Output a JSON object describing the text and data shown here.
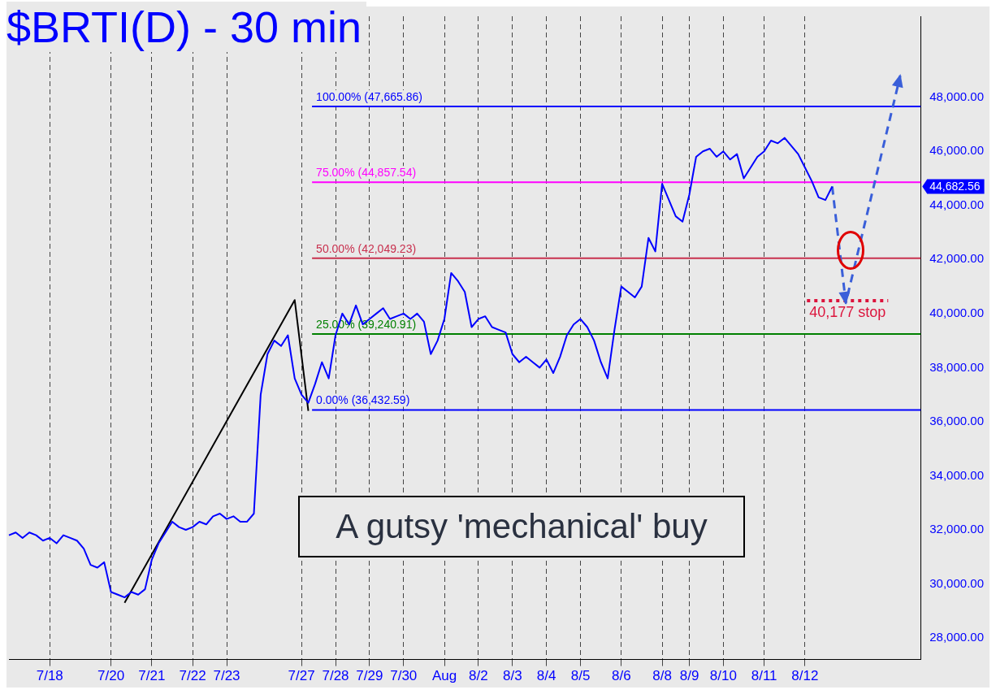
{
  "chart_data": {
    "type": "line",
    "title": "$BRTI(D) - 30 min",
    "categories": [
      null,
      null,
      null,
      null,
      null,
      null,
      "7/18",
      null,
      null,
      null,
      null,
      null,
      null,
      null,
      null,
      "7/20",
      null,
      null,
      null,
      null,
      null,
      "7/21",
      null,
      null,
      null,
      null,
      null,
      "7/22",
      null,
      null,
      null,
      null,
      "7/23",
      null,
      null,
      null,
      null,
      null,
      null,
      null,
      null,
      null,
      null,
      "7/27",
      null,
      null,
      null,
      null,
      "7/28",
      null,
      null,
      null,
      null,
      "7/29",
      null,
      null,
      null,
      null,
      "7/30",
      null,
      null,
      null,
      null,
      null,
      "Aug",
      null,
      null,
      null,
      null,
      "8/2",
      null,
      null,
      null,
      null,
      "8/3",
      null,
      null,
      null,
      null,
      "8/4",
      null,
      null,
      null,
      null,
      "8/5",
      null,
      null,
      null,
      null,
      null,
      "8/6",
      null,
      null,
      null,
      null,
      null,
      "8/8",
      null,
      null,
      null,
      "8/9",
      null,
      null,
      null,
      null,
      "8/10",
      null,
      null,
      null,
      null,
      null,
      "8/11",
      null,
      null,
      null,
      null,
      null,
      "8/12",
      null,
      null,
      null,
      null,
      null,
      null,
      null,
      null,
      null,
      null,
      null,
      null,
      null,
      null,
      null,
      null,
      null
    ],
    "series": [
      {
        "color": "#0000ff",
        "values": [
          31800,
          31900,
          31700,
          31900,
          31800,
          31600,
          31700,
          31500,
          31800,
          31700,
          31600,
          31300,
          30700,
          30600,
          30800,
          29700,
          29600,
          29500,
          29700,
          29600,
          29800,
          30900,
          31500,
          31900,
          32300,
          32100,
          32000,
          32100,
          32300,
          32200,
          32500,
          32600,
          32400,
          32500,
          32300,
          32300,
          32600,
          37000,
          38500,
          39000,
          38800,
          39200,
          37600,
          37000,
          36700,
          37400,
          38200,
          37600,
          39200,
          40000,
          39600,
          40300,
          39600,
          39800,
          40000,
          40200,
          39800,
          39900,
          40000,
          39800,
          40000,
          39700,
          38500,
          39000,
          39800,
          41500,
          41200,
          40800,
          39500,
          39800,
          39900,
          39500,
          39400,
          39300,
          38500,
          38200,
          38400,
          38200,
          38000,
          38300,
          37800,
          38400,
          39200,
          39600,
          39800,
          39500,
          39000,
          38200,
          37600,
          39400,
          41000,
          40800,
          40600,
          41000,
          42800,
          42300,
          44800,
          44200,
          43600,
          43400,
          44400,
          45800,
          46000,
          46100,
          45800,
          46000,
          45700,
          45900,
          45000,
          45400,
          45800,
          46000,
          46400,
          46300,
          46500,
          46200,
          45900,
          45400,
          44900,
          44300,
          44200,
          44700,
          null,
          null,
          null,
          null,
          null,
          null,
          null,
          null,
          null,
          null,
          null,
          null,
          null
        ]
      },
      {
        "color": "#000000",
        "values": [
          null,
          null,
          null,
          null,
          null,
          null,
          null,
          null,
          null,
          null,
          null,
          null,
          null,
          null,
          null,
          null,
          null,
          29300,
          null,
          null,
          null,
          null,
          null,
          null,
          null,
          null,
          null,
          null,
          null,
          null,
          null,
          null,
          null,
          null,
          null,
          null,
          null,
          null,
          null,
          null,
          null,
          null,
          40500,
          null,
          36400,
          null,
          null,
          null,
          null,
          null,
          null,
          null,
          null,
          null,
          null,
          null,
          null,
          null,
          null,
          null,
          null,
          null,
          null,
          null,
          null,
          null,
          null,
          null,
          null,
          null,
          null,
          null,
          null,
          null,
          null,
          null,
          null,
          null,
          null,
          null,
          null,
          null,
          null,
          null,
          null,
          null,
          null,
          null,
          null,
          null,
          null,
          null,
          null,
          null,
          null,
          null,
          null,
          null,
          null,
          null,
          null,
          null,
          null,
          null,
          null,
          null,
          null,
          null,
          null,
          null,
          null,
          null,
          null,
          null,
          null,
          null,
          null,
          null,
          null,
          null,
          null,
          null,
          null,
          null,
          null,
          null,
          null,
          null,
          null,
          null,
          null,
          null,
          null,
          null,
          null
        ]
      },
      {
        "color": "#3a5fd9",
        "line_style": "dashed",
        "values": [
          null,
          null,
          null,
          null,
          null,
          null,
          null,
          null,
          null,
          null,
          null,
          null,
          null,
          null,
          null,
          null,
          null,
          null,
          null,
          null,
          null,
          null,
          null,
          null,
          null,
          null,
          null,
          null,
          null,
          null,
          null,
          null,
          null,
          null,
          null,
          null,
          null,
          null,
          null,
          null,
          null,
          null,
          null,
          null,
          null,
          null,
          null,
          null,
          null,
          null,
          null,
          null,
          null,
          null,
          null,
          null,
          null,
          null,
          null,
          null,
          null,
          null,
          null,
          null,
          null,
          null,
          null,
          null,
          null,
          null,
          null,
          null,
          null,
          null,
          null,
          null,
          null,
          null,
          null,
          null,
          null,
          null,
          null,
          null,
          null,
          null,
          null,
          null,
          null,
          null,
          null,
          null,
          null,
          null,
          null,
          null,
          null,
          null,
          null,
          null,
          null,
          null,
          null,
          null,
          null,
          null,
          null,
          null,
          null,
          null,
          null,
          null,
          null,
          null,
          null,
          null,
          null,
          null,
          null,
          null,
          null,
          44700,
          null,
          40400,
          null,
          null,
          null,
          null,
          null,
          null,
          null,
          48800,
          null,
          null,
          null
        ]
      }
    ],
    "ylim": [
      27200,
      51000
    ],
    "yticks": [
      {
        "value": 28000,
        "label": "28,000.00"
      },
      {
        "value": 30000,
        "label": "30,000.00"
      },
      {
        "value": 32000,
        "label": "32,000.00"
      },
      {
        "value": 34000,
        "label": "34,000.00"
      },
      {
        "value": 36000,
        "label": "36,000.00"
      },
      {
        "value": 38000,
        "label": "38,000.00"
      },
      {
        "value": 40000,
        "label": "40,000.00"
      },
      {
        "value": 42000,
        "label": "42,000.00"
      },
      {
        "value": 44000,
        "label": "44,000.00"
      },
      {
        "value": 46000,
        "label": "46,000.00"
      },
      {
        "value": 48000,
        "label": "48,000.00"
      }
    ],
    "ref_lines": [
      {
        "axis": "y",
        "value": 47665.86,
        "label": "100.00% (47,665.86)",
        "color": "#0000ff"
      },
      {
        "axis": "y",
        "value": 44857.54,
        "label": "75.00% (44,857.54)",
        "color": "#ff00ff"
      },
      {
        "axis": "y",
        "value": 42049.23,
        "label": "50.00% (42,049.23)",
        "color": "#c8304e"
      },
      {
        "axis": "y",
        "value": 39240.91,
        "label": "25.00% (39,240.91)",
        "color": "#008000"
      },
      {
        "axis": "y",
        "value": 36432.59,
        "label": "0.00% (36,432.59)",
        "color": "#0000ff"
      }
    ],
    "annotations": [
      "A gutsy 'mechanical' buy",
      "40,177 stop",
      "44,682.56"
    ],
    "grid": "x",
    "marker": "none",
    "legend": false
  }
}
